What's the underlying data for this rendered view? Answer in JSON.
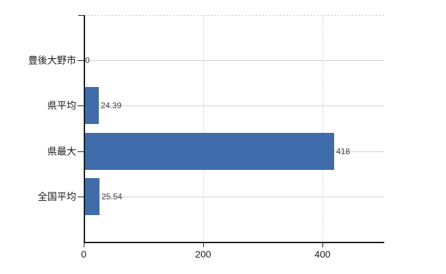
{
  "chart_data": {
    "type": "bar",
    "orientation": "horizontal",
    "title": "",
    "xlabel": "",
    "ylabel": "",
    "categories": [
      "豊後大野市",
      "県平均",
      "県最大",
      "全国平均"
    ],
    "values": [
      0,
      24.39,
      418,
      25.54
    ],
    "value_labels": [
      "0",
      "24.39",
      "418",
      "25.54"
    ],
    "x_ticks": [
      0,
      200,
      400
    ],
    "x_tick_labels": [
      "0",
      "200",
      "400"
    ],
    "xlim": [
      0,
      503
    ],
    "grid": true,
    "legend": false,
    "colors": {
      "bar": "#3f6dab",
      "axis": "#1a1a1a",
      "grid_horizontal": "#ccd4c8",
      "grid_vertical": "#d6d6d6",
      "category_text": "#1a1a1a",
      "value_text": "#3d3d3d",
      "background": "#ffffff"
    }
  }
}
